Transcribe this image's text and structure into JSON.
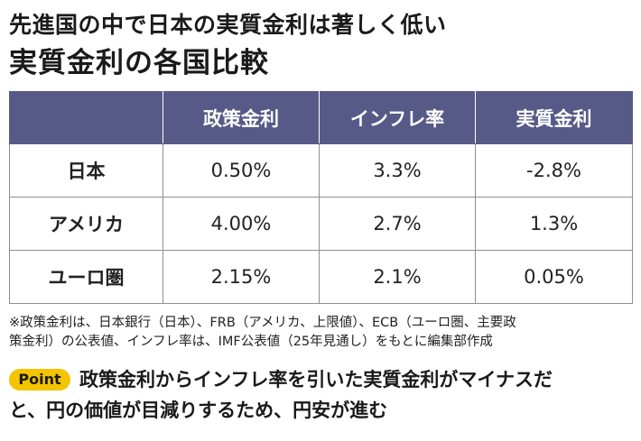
{
  "subtitle": "先進国の中で日本の実質金利は著しく低い",
  "title": "実質金利の各国比較",
  "table": {
    "header": [
      "",
      "政策金利",
      "インフレ率",
      "実質金利"
    ],
    "rows": [
      {
        "country": "日本",
        "policy_rate": "0.50%",
        "inflation": "3.3%",
        "real_rate": "-2.8%"
      },
      {
        "country": "アメリカ",
        "policy_rate": "4.00%",
        "inflation": "2.7%",
        "real_rate": "1.3%"
      },
      {
        "country": "ユーロ圏",
        "policy_rate": "2.15%",
        "inflation": "2.1%",
        "real_rate": "0.05%"
      }
    ]
  },
  "note": {
    "line1": "※政策金利は、日本銀行（日本）、FRB（アメリカ、上限値）、ECB（ユーロ圏、主要政",
    "line2": "策金利）の公表値、インフレ率は、IMF公表値（25年見通し）をもとに編集部作成"
  },
  "point": {
    "badge": "Point",
    "line1": "政策金利からインフレ率を引いた実質金利がマイナスだ",
    "line2": "と、円の価値が目減りするため、円安が進む"
  },
  "colors": {
    "header_bg": "#575a87",
    "badge_bg": "#f4c400"
  }
}
